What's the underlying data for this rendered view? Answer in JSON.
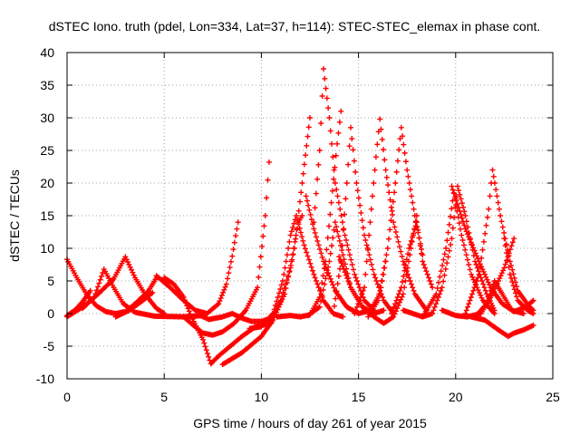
{
  "chart_data": {
    "type": "line",
    "title": "dSTEC Iono. truth (pdel, Lon=334, Lat=37, h=114): STEC-STEC_elemax in phase cont.",
    "xlabel": "GPS time / hours of day 261 of year 2015",
    "ylabel": "dSTEC  / TECUs",
    "xlim": [
      0,
      25
    ],
    "ylim": [
      -10,
      40
    ],
    "xticks": [
      "0",
      "5",
      "10",
      "15",
      "20",
      "25"
    ],
    "yticks": [
      "-10",
      "-5",
      "0",
      "5",
      "10",
      "15",
      "20",
      "25",
      "30",
      "35",
      "40"
    ],
    "grid": true,
    "marker": "+",
    "series_color": "#ff0000",
    "series": [
      {
        "points": [
          [
            0.0,
            8.3
          ],
          [
            0.5,
            5.5
          ],
          [
            1.0,
            3.0
          ],
          [
            1.5,
            1.2
          ],
          [
            2.0,
            0.3
          ],
          [
            2.5,
            0.0
          ],
          [
            3.0,
            0.3
          ],
          [
            3.5,
            1.5
          ],
          [
            4.2,
            3.5
          ],
          [
            4.6,
            5.5
          ]
        ]
      },
      {
        "points": [
          [
            0.0,
            -0.3
          ],
          [
            0.4,
            0.5
          ],
          [
            0.8,
            1.8
          ],
          [
            1.2,
            3.5
          ]
        ]
      },
      {
        "points": [
          [
            0.0,
            -0.5
          ],
          [
            0.8,
            1.0
          ],
          [
            1.6,
            3.0
          ],
          [
            2.4,
            5.3
          ],
          [
            3.0,
            8.7
          ],
          [
            3.5,
            5.5
          ],
          [
            4.0,
            3.0
          ],
          [
            4.6,
            0.8
          ],
          [
            5.0,
            0.0
          ]
        ]
      },
      {
        "points": [
          [
            0.8,
            0.8
          ],
          [
            1.4,
            2.5
          ],
          [
            1.9,
            6.8
          ],
          [
            2.4,
            4.0
          ],
          [
            2.9,
            1.5
          ],
          [
            3.5,
            0.2
          ],
          [
            4.5,
            -0.4
          ],
          [
            6.0,
            -0.5
          ],
          [
            7.0,
            -0.3
          ]
        ]
      },
      {
        "points": [
          [
            2.5,
            -0.5
          ],
          [
            3.2,
            0.5
          ],
          [
            3.9,
            2.0
          ],
          [
            4.4,
            3.2
          ]
        ]
      },
      {
        "points": [
          [
            4.6,
            5.8
          ],
          [
            5.3,
            4.0
          ],
          [
            6.0,
            2.0
          ],
          [
            6.6,
            0.5
          ],
          [
            7.2,
            0.0
          ],
          [
            7.8,
            1.5
          ],
          [
            8.2,
            4.5
          ],
          [
            8.5,
            8.8
          ],
          [
            8.8,
            14.0
          ]
        ]
      },
      {
        "points": [
          [
            5.0,
            5.5
          ],
          [
            5.5,
            4.5
          ],
          [
            6.0,
            2.5
          ],
          [
            6.4,
            -0.5
          ],
          [
            7.0,
            -4.0
          ],
          [
            7.4,
            -7.7
          ],
          [
            7.8,
            -6.5
          ],
          [
            8.4,
            -5.0
          ],
          [
            9.0,
            -3.5
          ],
          [
            9.7,
            -2.0
          ],
          [
            10.5,
            -1.5
          ]
        ]
      },
      {
        "points": [
          [
            6.0,
            -0.5
          ],
          [
            6.5,
            -1.8
          ],
          [
            7.0,
            -3.0
          ],
          [
            7.5,
            -3.3
          ],
          [
            8.0,
            -2.8
          ],
          [
            8.6,
            -1.5
          ],
          [
            9.2,
            0.5
          ],
          [
            9.8,
            4.0
          ],
          [
            10.2,
            15.0
          ],
          [
            10.4,
            23.2
          ]
        ]
      },
      {
        "points": [
          [
            6.8,
            -0.2
          ],
          [
            7.3,
            -0.9
          ],
          [
            8.0,
            -0.5
          ],
          [
            8.5,
            0.0
          ],
          [
            9.0,
            -0.7
          ],
          [
            9.5,
            -1.2
          ],
          [
            10.0,
            -1.2
          ],
          [
            10.5,
            -0.7
          ],
          [
            11.0,
            2.0
          ],
          [
            11.5,
            7.0
          ],
          [
            11.9,
            14.0
          ],
          [
            12.1,
            15.0
          ]
        ]
      },
      {
        "points": [
          [
            8.0,
            -7.8
          ],
          [
            9.0,
            -6.0
          ],
          [
            10.0,
            -3.5
          ],
          [
            10.6,
            -1.0
          ],
          [
            11.2,
            3.0
          ],
          [
            11.7,
            10.0
          ],
          [
            12.1,
            20.0
          ],
          [
            12.5,
            30.0
          ]
        ]
      },
      {
        "points": [
          [
            9.4,
            -2.3
          ],
          [
            10.0,
            -2.0
          ],
          [
            10.6,
            0.0
          ],
          [
            11.1,
            5.0
          ],
          [
            11.5,
            12.0
          ],
          [
            11.8,
            15.0
          ],
          [
            12.2,
            10.5
          ],
          [
            12.7,
            6.0
          ],
          [
            13.2,
            2.0
          ],
          [
            13.7,
            0.0
          ],
          [
            14.2,
            -0.5
          ]
        ]
      },
      {
        "points": [
          [
            10.8,
            -0.5
          ],
          [
            11.5,
            -0.3
          ],
          [
            12.0,
            -0.5
          ],
          [
            12.5,
            -0.2
          ],
          [
            13.0,
            2.5
          ],
          [
            13.3,
            8.0
          ],
          [
            13.6,
            17.0
          ],
          [
            13.9,
            26.0
          ],
          [
            14.1,
            31.0
          ]
        ]
      },
      {
        "points": [
          [
            12.4,
            -0.3
          ],
          [
            13.0,
            1.0
          ],
          [
            13.5,
            8.0
          ],
          [
            13.8,
            14.0
          ],
          [
            14.2,
            9.0
          ],
          [
            14.6,
            4.0
          ],
          [
            15.2,
            1.0
          ],
          [
            15.8,
            0.0
          ],
          [
            16.3,
            0.5
          ]
        ]
      },
      {
        "points": [
          [
            12.3,
            18.0
          ],
          [
            12.7,
            13.0
          ],
          [
            13.2,
            8.0
          ],
          [
            13.8,
            3.5
          ],
          [
            14.4,
            1.0
          ],
          [
            15.0,
            0.0
          ],
          [
            15.6,
            0.5
          ],
          [
            16.1,
            3.0
          ],
          [
            16.4,
            8.0
          ]
        ]
      },
      {
        "points": [
          [
            12.7,
            14.0
          ],
          [
            13.0,
            25.0
          ],
          [
            13.2,
            37.5
          ],
          [
            13.5,
            30.0
          ],
          [
            13.8,
            20.0
          ],
          [
            14.3,
            12.0
          ],
          [
            14.8,
            6.0
          ],
          [
            15.3,
            2.0
          ],
          [
            15.8,
            0.5
          ]
        ]
      },
      {
        "points": [
          [
            14.0,
            8.7
          ],
          [
            14.6,
            4.0
          ],
          [
            15.2,
            1.0
          ],
          [
            15.8,
            -0.5
          ],
          [
            16.3,
            -1.5
          ],
          [
            16.8,
            -0.5
          ],
          [
            17.3,
            3.0
          ],
          [
            17.7,
            10.0
          ],
          [
            18.0,
            15.0
          ]
        ]
      },
      {
        "points": [
          [
            13.7,
            0.0
          ],
          [
            14.1,
            8.0
          ],
          [
            14.4,
            20.0
          ],
          [
            14.6,
            28.5
          ],
          [
            14.9,
            20.0
          ],
          [
            15.3,
            12.0
          ],
          [
            15.8,
            6.0
          ],
          [
            16.3,
            2.0
          ],
          [
            16.8,
            0.0
          ]
        ]
      },
      {
        "points": [
          [
            14.8,
            0.0
          ],
          [
            15.3,
            4.0
          ],
          [
            15.6,
            14.0
          ],
          [
            15.9,
            24.0
          ],
          [
            16.1,
            29.8
          ],
          [
            16.4,
            22.0
          ],
          [
            16.8,
            14.0
          ],
          [
            17.3,
            8.0
          ],
          [
            17.9,
            3.0
          ],
          [
            18.5,
            0.5
          ]
        ]
      },
      {
        "points": [
          [
            15.5,
            -0.5
          ],
          [
            16.0,
            2.0
          ],
          [
            16.5,
            10.0
          ],
          [
            16.9,
            20.0
          ],
          [
            17.2,
            28.5
          ],
          [
            17.5,
            22.0
          ],
          [
            17.9,
            15.0
          ],
          [
            18.3,
            9.0
          ]
        ]
      },
      {
        "points": [
          [
            16.7,
            0.0
          ],
          [
            17.2,
            4.0
          ],
          [
            17.6,
            10.0
          ],
          [
            18.0,
            14.0
          ],
          [
            18.3,
            8.0
          ],
          [
            18.8,
            4.0
          ]
        ]
      },
      {
        "points": [
          [
            17.3,
            0.5
          ],
          [
            17.8,
            0.0
          ],
          [
            18.3,
            -0.5
          ],
          [
            18.8,
            0.0
          ],
          [
            19.3,
            4.0
          ],
          [
            19.8,
            11.5
          ],
          [
            20.1,
            19.5
          ],
          [
            20.5,
            15.0
          ],
          [
            21.0,
            8.0
          ],
          [
            21.6,
            3.0
          ],
          [
            22.0,
            0.5
          ]
        ]
      },
      {
        "points": [
          [
            18.4,
            0.0
          ],
          [
            19.0,
            3.0
          ],
          [
            19.5,
            10.0
          ],
          [
            19.9,
            18.5
          ],
          [
            20.3,
            12.0
          ],
          [
            20.8,
            6.0
          ],
          [
            21.4,
            2.0
          ],
          [
            22.0,
            0.0
          ]
        ]
      },
      {
        "points": [
          [
            19.3,
            0.5
          ],
          [
            20.0,
            -0.3
          ],
          [
            20.6,
            -0.5
          ],
          [
            21.3,
            0.0
          ],
          [
            21.9,
            3.0
          ],
          [
            22.5,
            7.0
          ],
          [
            23.0,
            11.5
          ]
        ]
      },
      {
        "points": [
          [
            20.5,
            0.0
          ],
          [
            21.2,
            6.0
          ],
          [
            21.7,
            16.0
          ],
          [
            21.9,
            22.0
          ],
          [
            22.3,
            15.0
          ],
          [
            22.8,
            8.0
          ],
          [
            23.2,
            3.5
          ],
          [
            23.8,
            1.0
          ],
          [
            24.0,
            0.5
          ]
        ]
      },
      {
        "points": [
          [
            19.8,
            19.5
          ],
          [
            20.5,
            13.0
          ],
          [
            21.2,
            8.0
          ],
          [
            21.8,
            4.0
          ],
          [
            22.4,
            1.5
          ],
          [
            23.0,
            0.3
          ],
          [
            23.6,
            1.0
          ],
          [
            24.0,
            2.0
          ]
        ]
      },
      {
        "points": [
          [
            20.8,
            -0.5
          ],
          [
            21.5,
            -1.0
          ],
          [
            22.2,
            -2.5
          ],
          [
            22.7,
            -3.5
          ],
          [
            23.0,
            -3.0
          ],
          [
            23.5,
            -2.5
          ],
          [
            24.0,
            -1.8
          ]
        ]
      },
      {
        "points": [
          [
            21.0,
            -0.5
          ],
          [
            21.6,
            1.5
          ],
          [
            22.0,
            5.0
          ],
          [
            22.4,
            3.0
          ],
          [
            22.9,
            0.5
          ],
          [
            23.5,
            0.0
          ]
        ]
      },
      {
        "points": [
          [
            22.5,
            11.5
          ],
          [
            22.8,
            6.0
          ],
          [
            23.2,
            2.0
          ],
          [
            23.7,
            0.5
          ],
          [
            24.0,
            0.0
          ]
        ]
      }
    ]
  }
}
